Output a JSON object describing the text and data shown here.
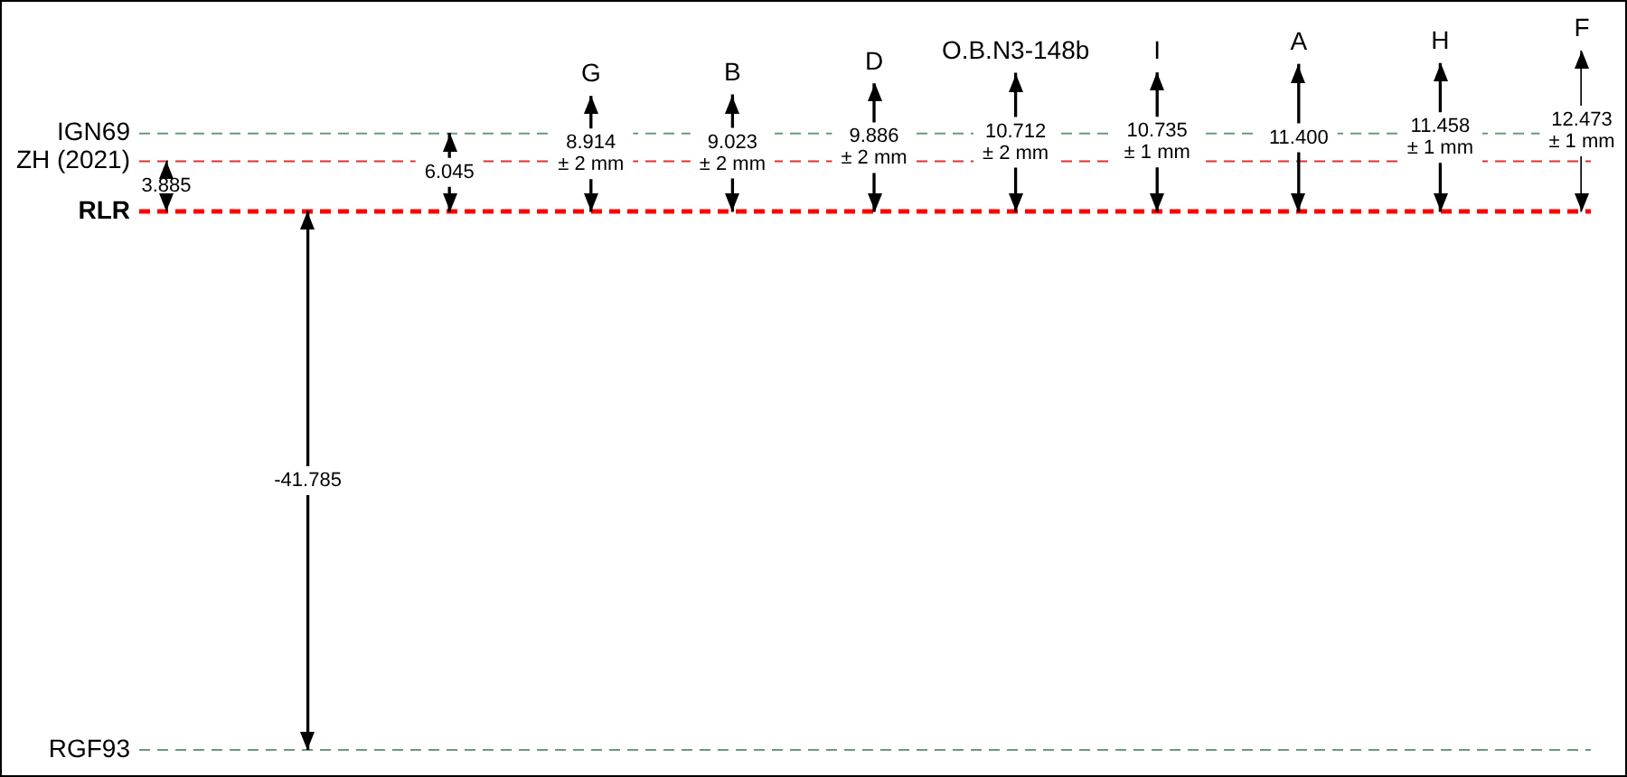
{
  "chart_data": {
    "type": "bar",
    "categories": [
      null,
      null,
      null,
      "G",
      "B",
      "D",
      "O.B.N3-148b",
      "I",
      "A",
      "H",
      "F"
    ],
    "values": [
      3.885,
      -41.785,
      6.045,
      8.914,
      9.023,
      9.886,
      10.712,
      10.735,
      11.4,
      11.458,
      12.473
    ],
    "value_labels": [
      "3.885",
      "-41.785",
      "6.045",
      "8.914\n± 2 mm",
      "9.023\n± 2 mm",
      "9.886\n± 2 mm",
      "10.712\n± 2 mm",
      "10.735\n± 1 mm",
      "11.400",
      "11.458\n± 1 mm",
      "12.473\n± 1 mm"
    ],
    "color": "#000000",
    "tick_labels": "x",
    "ref_lines": [
      {
        "axis": "y",
        "value": 0,
        "label": "RLR",
        "color": "#ff0000",
        "line_style": "dashed"
      },
      {
        "axis": "y",
        "value": 3.885,
        "label": "ZH (2021)",
        "color": "#e03030",
        "line_style": "dashed"
      },
      {
        "axis": "y",
        "value": -41.785,
        "label": "RGF93",
        "color": "#6a9a78",
        "line_style": "dashed"
      },
      {
        "axis": "y",
        "value": 6.045,
        "label": "IGN69",
        "color": "#6a9a78",
        "line_style": "dashed"
      }
    ]
  }
}
